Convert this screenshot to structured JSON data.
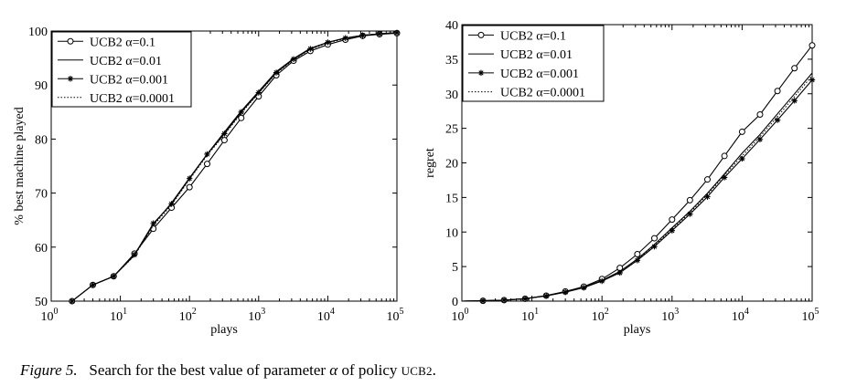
{
  "caption": {
    "label": "Figure 5.",
    "text_before": "Search for the best value of parameter",
    "symbol": "α",
    "text_mid": "of policy",
    "policy": "UCB2",
    "text_end": "."
  },
  "chart_data": [
    {
      "type": "line",
      "xlabel": "plays",
      "ylabel": "% best machine played",
      "x_scale": "log",
      "xlim": [
        1,
        100000
      ],
      "ylim": [
        50,
        100
      ],
      "x_ticks": [
        {
          "base": "10",
          "exp": "0"
        },
        {
          "base": "10",
          "exp": "1"
        },
        {
          "base": "10",
          "exp": "2"
        },
        {
          "base": "10",
          "exp": "3"
        },
        {
          "base": "10",
          "exp": "4"
        },
        {
          "base": "10",
          "exp": "5"
        }
      ],
      "y_ticks": [
        "50",
        "60",
        "70",
        "80",
        "90",
        "100"
      ],
      "legend_position": "top-left",
      "series": [
        {
          "name": "UCB2 α=0.1",
          "style": "solid",
          "marker": "circle",
          "x": [
            1,
            2,
            4,
            8,
            16,
            30,
            55,
            100,
            180,
            320,
            560,
            1000,
            1800,
            3200,
            5600,
            10000,
            18000,
            32000,
            56000,
            100000
          ],
          "y": [
            50,
            50,
            53,
            54.6,
            58.8,
            63.4,
            67.3,
            71.1,
            75.4,
            79.8,
            83.9,
            87.9,
            91.8,
            94.5,
            96.3,
            97.5,
            98.4,
            99.1,
            99.4,
            99.6
          ]
        },
        {
          "name": "UCB2 α=0.01",
          "style": "solid",
          "marker": "none",
          "x": [
            1,
            2,
            4,
            8,
            16,
            30,
            55,
            100,
            180,
            320,
            560,
            1000,
            1800,
            3200,
            5600,
            10000,
            18000,
            32000,
            56000,
            100000
          ],
          "y": [
            50,
            50,
            53,
            54.6,
            58.5,
            64.2,
            68.2,
            72.8,
            77.2,
            81.3,
            85.2,
            88.8,
            92.5,
            94.9,
            96.8,
            97.9,
            98.7,
            99.2,
            99.5,
            99.7
          ]
        },
        {
          "name": "UCB2 α=0.001",
          "style": "solid",
          "marker": "star",
          "x": [
            1,
            2,
            4,
            8,
            16,
            30,
            55,
            100,
            180,
            320,
            560,
            1000,
            1800,
            3200,
            5600,
            10000,
            18000,
            32000,
            56000,
            100000
          ],
          "y": [
            50,
            50,
            53,
            54.6,
            58.6,
            64.4,
            68.0,
            72.7,
            77.2,
            81.0,
            85.0,
            88.6,
            92.3,
            94.8,
            96.7,
            97.9,
            98.7,
            99.2,
            99.5,
            99.7
          ]
        },
        {
          "name": "UCB2 α=0.0001",
          "style": "dotted",
          "marker": "none",
          "x": [
            1,
            2,
            4,
            8,
            16,
            30,
            55,
            100,
            180,
            320,
            560,
            1000,
            1800,
            3200,
            5600,
            10000,
            18000,
            32000,
            56000,
            100000
          ],
          "y": [
            50,
            50,
            53,
            54.6,
            58.4,
            64.0,
            67.8,
            72.5,
            77.0,
            80.8,
            84.8,
            88.5,
            92.2,
            94.7,
            96.6,
            97.8,
            98.6,
            99.1,
            99.5,
            99.7
          ]
        }
      ]
    },
    {
      "type": "line",
      "xlabel": "plays",
      "ylabel": "regret",
      "x_scale": "log",
      "xlim": [
        1,
        100000
      ],
      "ylim": [
        0,
        40
      ],
      "x_ticks": [
        {
          "base": "10",
          "exp": "0"
        },
        {
          "base": "10",
          "exp": "1"
        },
        {
          "base": "10",
          "exp": "2"
        },
        {
          "base": "10",
          "exp": "3"
        },
        {
          "base": "10",
          "exp": "4"
        },
        {
          "base": "10",
          "exp": "5"
        }
      ],
      "y_ticks": [
        "0",
        "5",
        "10",
        "15",
        "20",
        "25",
        "30",
        "35",
        "40"
      ],
      "legend_position": "top-left",
      "series": [
        {
          "name": "UCB2 α=0.1",
          "style": "solid",
          "marker": "circle",
          "x": [
            1,
            2,
            4,
            8,
            16,
            30,
            55,
            100,
            180,
            320,
            560,
            1000,
            1800,
            3200,
            5600,
            10000,
            18000,
            32000,
            56000,
            100000
          ],
          "y": [
            0,
            0.05,
            0.15,
            0.35,
            0.8,
            1.4,
            2.1,
            3.2,
            4.8,
            6.8,
            9.1,
            11.8,
            14.6,
            17.6,
            21.0,
            24.5,
            27.0,
            30.4,
            33.7,
            37.0
          ]
        },
        {
          "name": "UCB2 α=0.01",
          "style": "solid",
          "marker": "none",
          "x": [
            1,
            2,
            4,
            8,
            16,
            30,
            55,
            100,
            180,
            320,
            560,
            1000,
            1800,
            3200,
            5600,
            10000,
            18000,
            32000,
            56000,
            100000
          ],
          "y": [
            0,
            0.05,
            0.15,
            0.35,
            0.78,
            1.35,
            2.0,
            3.0,
            4.3,
            6.1,
            8.2,
            10.6,
            13.0,
            15.6,
            18.4,
            21.4,
            24.1,
            27.1,
            30.0,
            33.0
          ]
        },
        {
          "name": "UCB2 α=0.001",
          "style": "solid",
          "marker": "star",
          "x": [
            1,
            2,
            4,
            8,
            16,
            30,
            55,
            100,
            180,
            320,
            560,
            1000,
            1800,
            3200,
            5600,
            10000,
            18000,
            32000,
            56000,
            100000
          ],
          "y": [
            0,
            0.05,
            0.15,
            0.35,
            0.75,
            1.3,
            1.95,
            2.9,
            4.1,
            5.9,
            7.9,
            10.2,
            12.6,
            15.1,
            17.9,
            20.6,
            23.4,
            26.2,
            29.0,
            32.0
          ]
        },
        {
          "name": "UCB2 α=0.0001",
          "style": "dotted",
          "marker": "none",
          "x": [
            1,
            2,
            4,
            8,
            16,
            30,
            55,
            100,
            180,
            320,
            560,
            1000,
            1800,
            3200,
            5600,
            10000,
            18000,
            32000,
            56000,
            100000
          ],
          "y": [
            0,
            0.05,
            0.15,
            0.35,
            0.76,
            1.32,
            1.97,
            2.95,
            4.2,
            6.0,
            8.0,
            10.4,
            12.8,
            15.4,
            18.2,
            21.0,
            23.8,
            26.7,
            29.6,
            32.6
          ]
        }
      ]
    }
  ]
}
